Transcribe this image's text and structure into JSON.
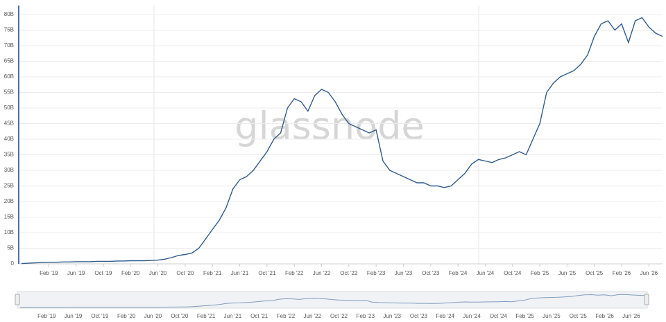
{
  "chart_data": {
    "type": "line",
    "watermark": "glassnode",
    "color": "#2f5a8a",
    "x": [
      "2018-10",
      "2018-11",
      "2018-12",
      "2019-01",
      "2019-02",
      "2019-03",
      "2019-04",
      "2019-05",
      "2019-06",
      "2019-07",
      "2019-08",
      "2019-09",
      "2019-10",
      "2019-11",
      "2019-12",
      "2020-01",
      "2020-02",
      "2020-03",
      "2020-04",
      "2020-05",
      "2020-06",
      "2020-07",
      "2020-08",
      "2020-09",
      "2020-10",
      "2020-11",
      "2020-12",
      "2021-01",
      "2021-02",
      "2021-03",
      "2021-04",
      "2021-05",
      "2021-06",
      "2021-07",
      "2021-08",
      "2021-09",
      "2021-10",
      "2021-11",
      "2021-12",
      "2022-01",
      "2022-02",
      "2022-03",
      "2022-04",
      "2022-05",
      "2022-06",
      "2022-07",
      "2022-08",
      "2022-09",
      "2022-10",
      "2022-11",
      "2022-12",
      "2023-01",
      "2023-02",
      "2023-03",
      "2023-04",
      "2023-05",
      "2023-06",
      "2023-07",
      "2023-08",
      "2023-09",
      "2023-10",
      "2023-11",
      "2023-12",
      "2024-01",
      "2024-02",
      "2024-03",
      "2024-04",
      "2024-05",
      "2024-06",
      "2024-07",
      "2024-08",
      "2024-09",
      "2024-10",
      "2024-11",
      "2024-12",
      "2025-01",
      "2025-02",
      "2025-03",
      "2025-04",
      "2025-05",
      "2025-06",
      "2025-07",
      "2025-08",
      "2025-09",
      "2025-10",
      "2025-11",
      "2025-12",
      "2026-01",
      "2026-02",
      "2026-03",
      "2026-04",
      "2026-05",
      "2026-06",
      "2026-07",
      "2026-08"
    ],
    "values": [
      0.1,
      0.2,
      0.3,
      0.4,
      0.5,
      0.5,
      0.6,
      0.6,
      0.7,
      0.7,
      0.7,
      0.8,
      0.8,
      0.8,
      0.9,
      0.9,
      1,
      1,
      1,
      1.1,
      1.2,
      1.5,
      2,
      2.7,
      3,
      3.5,
      5,
      8,
      11,
      14,
      18,
      24,
      27,
      28,
      30,
      33,
      36,
      40,
      42,
      50,
      53,
      52,
      49,
      54,
      56,
      55,
      52,
      48,
      45,
      44,
      43,
      42,
      43,
      33,
      30,
      29,
      28,
      27,
      26,
      26,
      25,
      25,
      24.5,
      25,
      27,
      29,
      32,
      33.5,
      33,
      32.5,
      33.5,
      34,
      35,
      36,
      35,
      40,
      45,
      55,
      58,
      60,
      61,
      62,
      64,
      67,
      73,
      77,
      78,
      75,
      77,
      71,
      78,
      79,
      76,
      74,
      73
    ],
    "xlim": [
      "2018-10",
      "2026-08"
    ],
    "xticks": [
      {
        "value": "2019-02",
        "label": "Feb '19"
      },
      {
        "value": "2019-06",
        "label": "Jun '19"
      },
      {
        "value": "2019-10",
        "label": "Oct '19"
      },
      {
        "value": "2020-02",
        "label": "Feb '20"
      },
      {
        "value": "2020-06",
        "label": "Jun '20"
      },
      {
        "value": "2020-10",
        "label": "Oct '20"
      },
      {
        "value": "2021-02",
        "label": "Feb '21"
      },
      {
        "value": "2021-06",
        "label": "Jun '21"
      },
      {
        "value": "2021-10",
        "label": "Oct '21"
      },
      {
        "value": "2022-02",
        "label": "Feb '22"
      },
      {
        "value": "2022-06",
        "label": "Jun '22"
      },
      {
        "value": "2022-10",
        "label": "Oct '22"
      },
      {
        "value": "2023-02",
        "label": "Feb '23"
      },
      {
        "value": "2023-06",
        "label": "Jun '23"
      },
      {
        "value": "2023-10",
        "label": "Oct '23"
      },
      {
        "value": "2024-02",
        "label": "Feb '24"
      },
      {
        "value": "2024-06",
        "label": "Jun '24"
      },
      {
        "value": "2024-10",
        "label": "Oct '24"
      },
      {
        "value": "2025-02",
        "label": "Feb '25"
      },
      {
        "value": "2025-06",
        "label": "Jun '25"
      },
      {
        "value": "2025-10",
        "label": "Oct '25"
      },
      {
        "value": "2026-02",
        "label": "Feb '26"
      },
      {
        "value": "2026-06",
        "label": "Jun '26"
      }
    ],
    "ylim": [
      0,
      80
    ],
    "yticks": [
      0,
      {
        "value": 5,
        "label": "5B"
      },
      {
        "value": 10,
        "label": "10B"
      },
      {
        "value": 15,
        "label": "15B"
      },
      {
        "value": 20,
        "label": "20B"
      },
      {
        "value": 25,
        "label": "25B"
      },
      {
        "value": 30,
        "label": "30B"
      },
      {
        "value": 35,
        "label": "35B"
      },
      {
        "value": 40,
        "label": "40B"
      },
      {
        "value": 45,
        "label": "45B"
      },
      {
        "value": 50,
        "label": "50B"
      },
      {
        "value": 55,
        "label": "55B"
      },
      {
        "value": 60,
        "label": "60B"
      },
      {
        "value": 65,
        "label": "65B"
      },
      {
        "value": 70,
        "label": "70B"
      },
      {
        "value": 75,
        "label": "75B"
      },
      {
        "value": 80,
        "label": "80B"
      }
    ],
    "grid": true
  }
}
